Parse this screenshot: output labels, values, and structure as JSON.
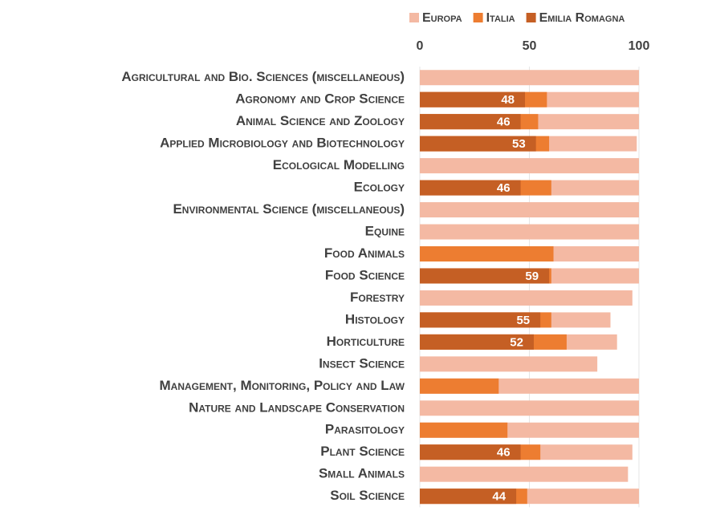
{
  "chart_data": {
    "type": "bar",
    "orientation": "horizontal",
    "overlap": true,
    "categories": [
      "Agricultural and Bio. Sciences (miscellaneous)",
      "Agronomy and Crop Science",
      "Animal Science and Zoology",
      "Applied Microbiology and Biotechnology",
      "Ecological Modelling",
      "Ecology",
      "Environmental Science (miscellaneous)",
      "Equine",
      "Food Animals",
      "Food Science",
      "Forestry",
      "Histology",
      "Horticulture",
      "Insect Science",
      "Management, Monitoring, Policy and Law",
      "Nature and Landscape Conservation",
      "Parasitology",
      "Plant Science",
      "Small Animals",
      "Soil Science"
    ],
    "series": [
      {
        "name": "Europa",
        "color": "#f4b9a3",
        "labels": false,
        "values": [
          100,
          100,
          100,
          99,
          100,
          100,
          100,
          100,
          100,
          100,
          97,
          87,
          90,
          81,
          100,
          100,
          100,
          97,
          95,
          100
        ]
      },
      {
        "name": "Italia",
        "color": "#ed7d31",
        "labels": false,
        "values": [
          null,
          58,
          54,
          59,
          null,
          60,
          null,
          null,
          61,
          60,
          null,
          60,
          67,
          null,
          36,
          null,
          40,
          55,
          null,
          49
        ]
      },
      {
        "name": "Emilia Romagna",
        "color": "#c55f24",
        "labels": true,
        "values": [
          null,
          48,
          46,
          53,
          null,
          46,
          null,
          null,
          null,
          59,
          null,
          55,
          52,
          null,
          null,
          null,
          null,
          46,
          null,
          44
        ]
      }
    ],
    "xlim": [
      0,
      100
    ],
    "xticks": [
      0,
      50,
      100
    ],
    "grid": true,
    "legend": "top"
  }
}
